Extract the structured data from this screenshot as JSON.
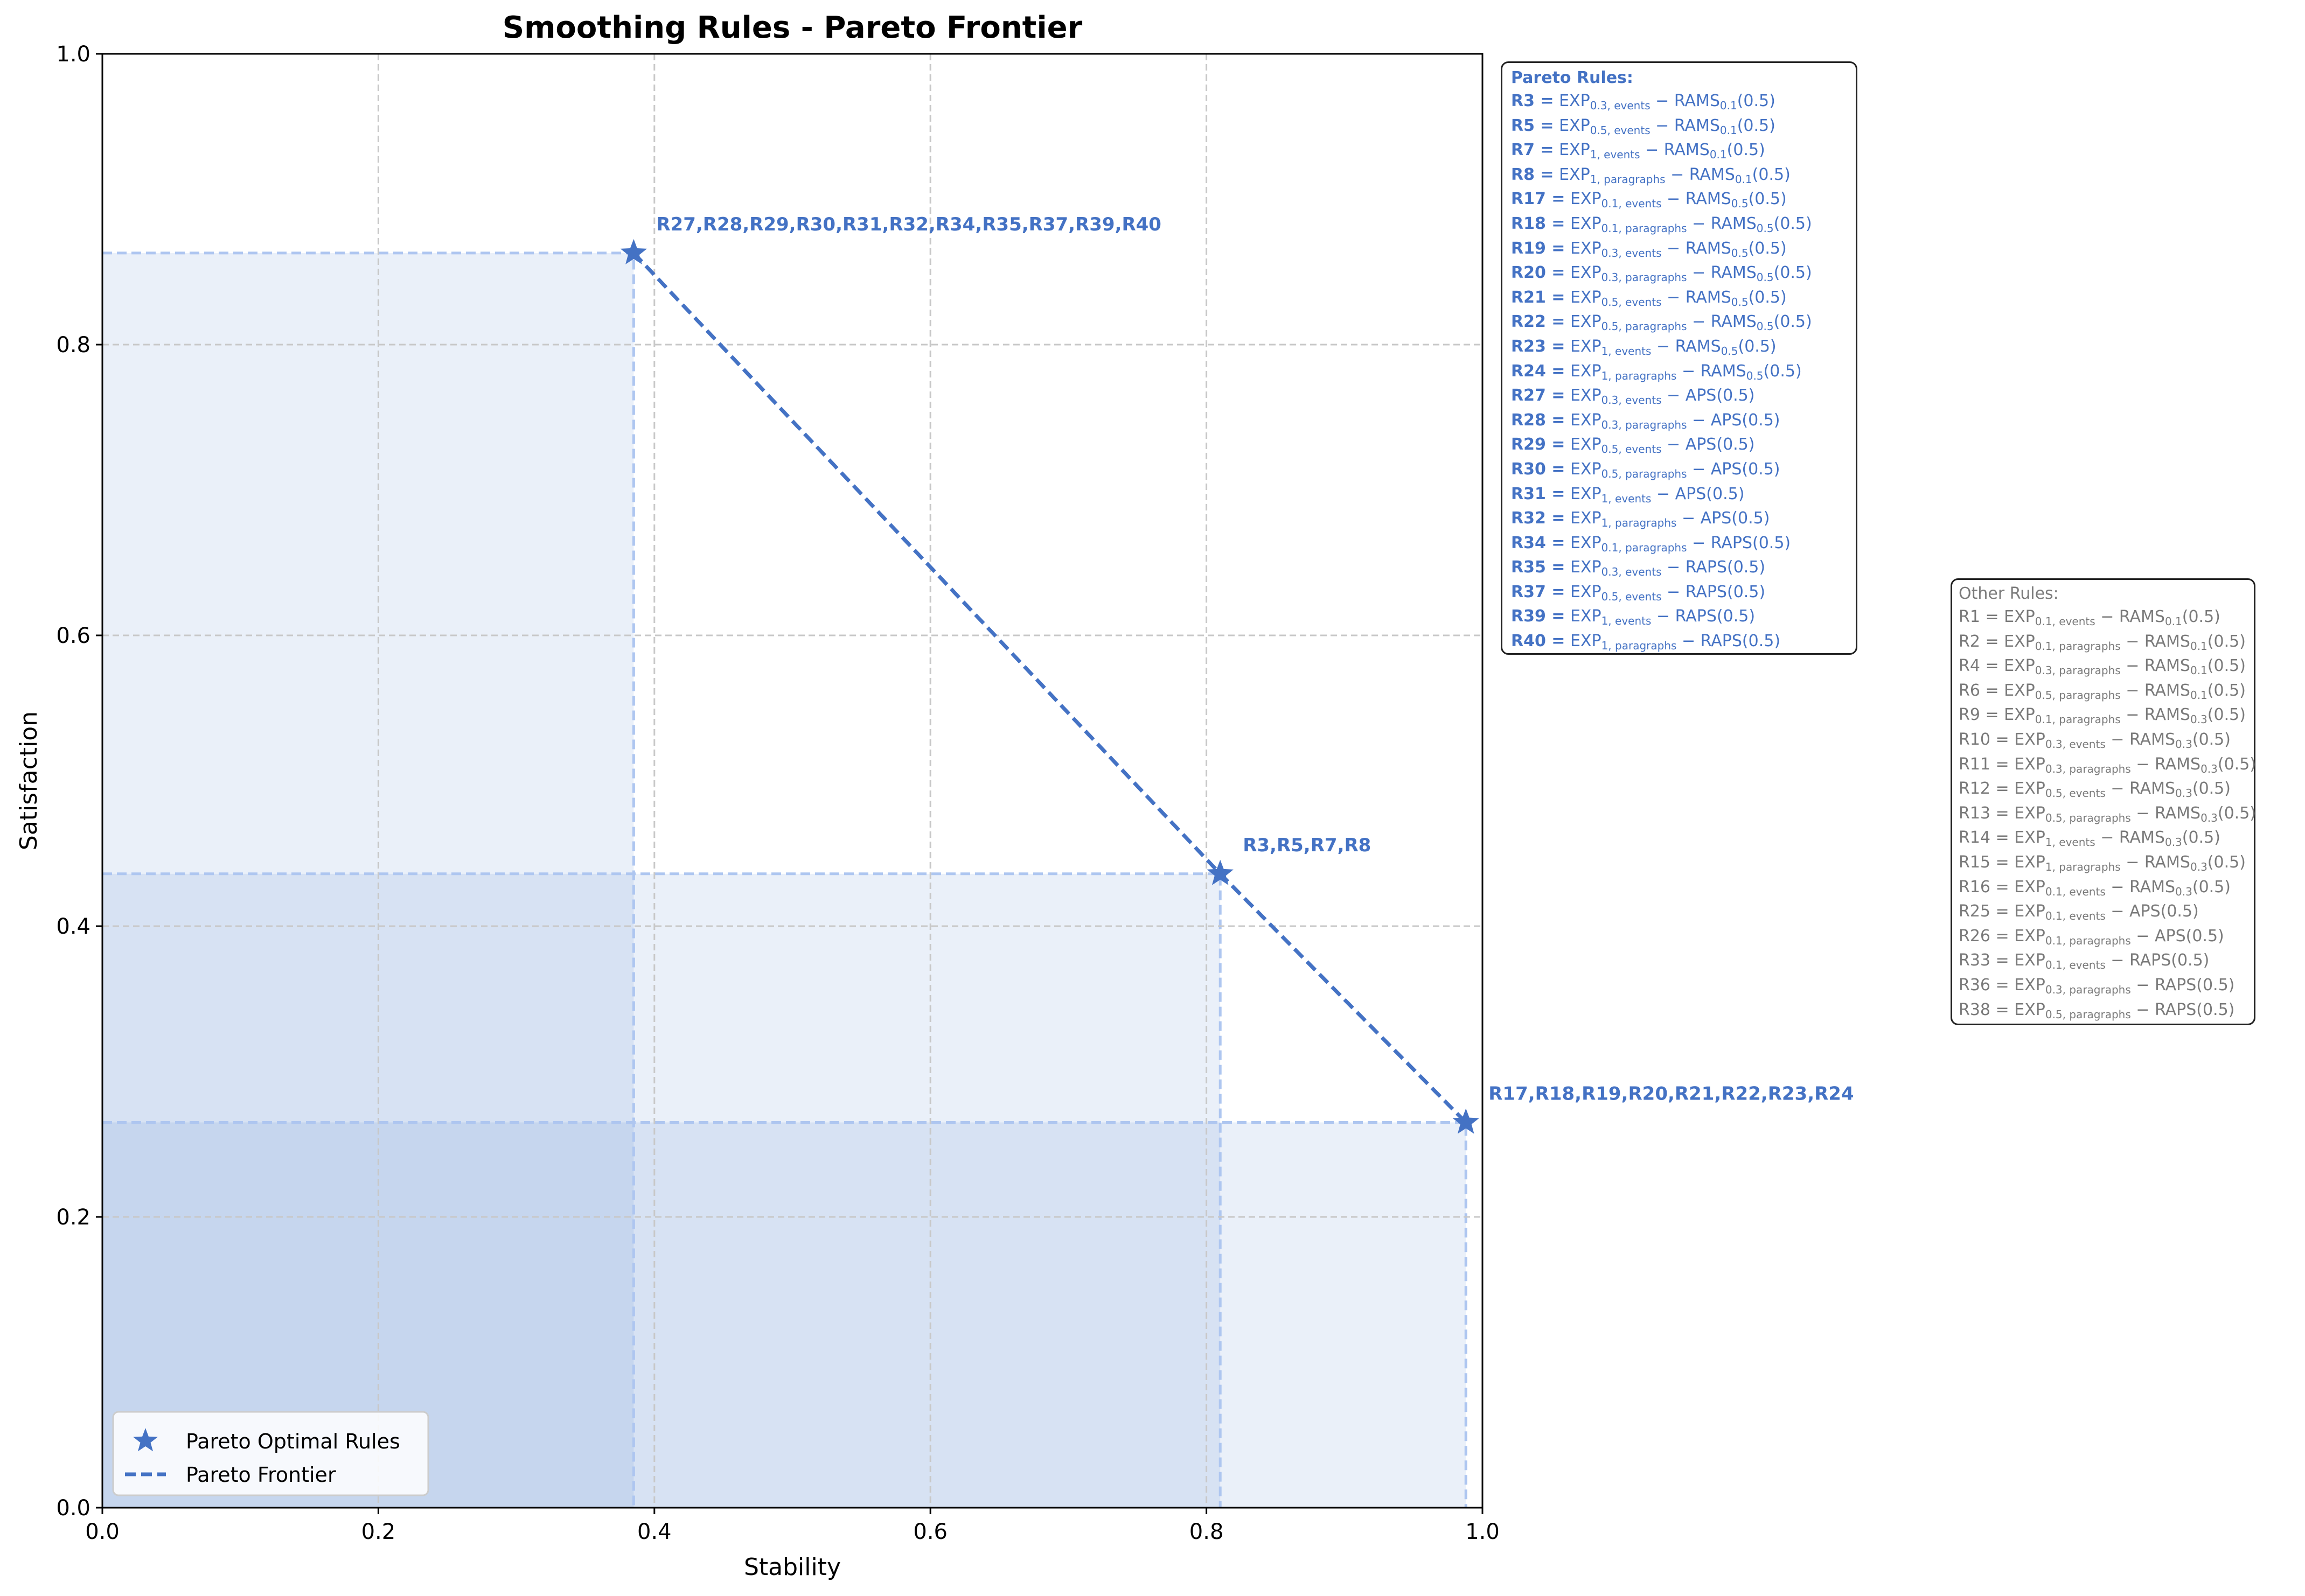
{
  "chart_data": {
    "type": "scatter",
    "title": "Smoothing Rules - Pareto Frontier",
    "xlabel": "Stability",
    "ylabel": "Satisfaction",
    "xlim": [
      0.0,
      1.0
    ],
    "ylim": [
      0.0,
      1.0
    ],
    "xticks": [
      "0.0",
      "0.2",
      "0.4",
      "0.6",
      "0.8",
      "1.0"
    ],
    "yticks": [
      "0.0",
      "0.2",
      "0.4",
      "0.6",
      "0.8",
      "1.0"
    ],
    "grid": true,
    "legend_position": "lower left",
    "colors": {
      "accent": "#4472c4",
      "region_fill": "#4472c4",
      "region_edge": "#aec6f0",
      "other_text": "#7a7a7a",
      "grid": "#c8c8c8"
    },
    "series": [
      {
        "name": "Pareto Optimal Rules",
        "marker": "star",
        "style": "markers"
      },
      {
        "name": "Pareto Frontier",
        "style": "dashed-line"
      }
    ],
    "points": [
      {
        "x": 0.385,
        "y": 0.863,
        "label": "R27,R28,R29,R30,R31,R32,R34,R35,R37,R39,R40"
      },
      {
        "x": 0.81,
        "y": 0.436,
        "label": "R3,R5,R7,R8"
      },
      {
        "x": 0.988,
        "y": 0.265,
        "label": "R17,R18,R19,R20,R21,R22,R23,R24"
      }
    ],
    "pareto_rules_title": "Pareto Rules:",
    "pareto_rules": [
      {
        "id": "R3",
        "exp": "0.3, events",
        "method": "RAMS",
        "method_sub": "0.1",
        "param": "(0.5)"
      },
      {
        "id": "R5",
        "exp": "0.5, events",
        "method": "RAMS",
        "method_sub": "0.1",
        "param": "(0.5)"
      },
      {
        "id": "R7",
        "exp": "1, events",
        "method": "RAMS",
        "method_sub": "0.1",
        "param": "(0.5)"
      },
      {
        "id": "R8",
        "exp": "1, paragraphs",
        "method": "RAMS",
        "method_sub": "0.1",
        "param": "(0.5)"
      },
      {
        "id": "R17",
        "exp": "0.1, events",
        "method": "RAMS",
        "method_sub": "0.5",
        "param": "(0.5)"
      },
      {
        "id": "R18",
        "exp": "0.1, paragraphs",
        "method": "RAMS",
        "method_sub": "0.5",
        "param": "(0.5)"
      },
      {
        "id": "R19",
        "exp": "0.3, events",
        "method": "RAMS",
        "method_sub": "0.5",
        "param": "(0.5)"
      },
      {
        "id": "R20",
        "exp": "0.3, paragraphs",
        "method": "RAMS",
        "method_sub": "0.5",
        "param": "(0.5)"
      },
      {
        "id": "R21",
        "exp": "0.5, events",
        "method": "RAMS",
        "method_sub": "0.5",
        "param": "(0.5)"
      },
      {
        "id": "R22",
        "exp": "0.5, paragraphs",
        "method": "RAMS",
        "method_sub": "0.5",
        "param": "(0.5)"
      },
      {
        "id": "R23",
        "exp": "1, events",
        "method": "RAMS",
        "method_sub": "0.5",
        "param": "(0.5)"
      },
      {
        "id": "R24",
        "exp": "1, paragraphs",
        "method": "RAMS",
        "method_sub": "0.5",
        "param": "(0.5)"
      },
      {
        "id": "R27",
        "exp": "0.3, events",
        "method": "APS",
        "method_sub": "",
        "param": "(0.5)"
      },
      {
        "id": "R28",
        "exp": "0.3, paragraphs",
        "method": "APS",
        "method_sub": "",
        "param": "(0.5)"
      },
      {
        "id": "R29",
        "exp": "0.5, events",
        "method": "APS",
        "method_sub": "",
        "param": "(0.5)"
      },
      {
        "id": "R30",
        "exp": "0.5, paragraphs",
        "method": "APS",
        "method_sub": "",
        "param": "(0.5)"
      },
      {
        "id": "R31",
        "exp": "1, events",
        "method": "APS",
        "method_sub": "",
        "param": "(0.5)"
      },
      {
        "id": "R32",
        "exp": "1, paragraphs",
        "method": "APS",
        "method_sub": "",
        "param": "(0.5)"
      },
      {
        "id": "R34",
        "exp": "0.1, paragraphs",
        "method": "RAPS",
        "method_sub": "",
        "param": "(0.5)"
      },
      {
        "id": "R35",
        "exp": "0.3, events",
        "method": "RAPS",
        "method_sub": "",
        "param": "(0.5)"
      },
      {
        "id": "R37",
        "exp": "0.5, events",
        "method": "RAPS",
        "method_sub": "",
        "param": "(0.5)"
      },
      {
        "id": "R39",
        "exp": "1, events",
        "method": "RAPS",
        "method_sub": "",
        "param": "(0.5)"
      },
      {
        "id": "R40",
        "exp": "1, paragraphs",
        "method": "RAPS",
        "method_sub": "",
        "param": "(0.5)"
      }
    ],
    "other_rules_title": "Other Rules:",
    "other_rules": [
      {
        "id": "R1",
        "exp": "0.1, events",
        "method": "RAMS",
        "method_sub": "0.1",
        "param": "(0.5)"
      },
      {
        "id": "R2",
        "exp": "0.1, paragraphs",
        "method": "RAMS",
        "method_sub": "0.1",
        "param": "(0.5)"
      },
      {
        "id": "R4",
        "exp": "0.3, paragraphs",
        "method": "RAMS",
        "method_sub": "0.1",
        "param": "(0.5)"
      },
      {
        "id": "R6",
        "exp": "0.5, paragraphs",
        "method": "RAMS",
        "method_sub": "0.1",
        "param": "(0.5)"
      },
      {
        "id": "R9",
        "exp": "0.1, paragraphs",
        "method": "RAMS",
        "method_sub": "0.3",
        "param": "(0.5)"
      },
      {
        "id": "R10",
        "exp": "0.3, events",
        "method": "RAMS",
        "method_sub": "0.3",
        "param": "(0.5)"
      },
      {
        "id": "R11",
        "exp": "0.3, paragraphs",
        "method": "RAMS",
        "method_sub": "0.3",
        "param": "(0.5)"
      },
      {
        "id": "R12",
        "exp": "0.5, events",
        "method": "RAMS",
        "method_sub": "0.3",
        "param": "(0.5)"
      },
      {
        "id": "R13",
        "exp": "0.5, paragraphs",
        "method": "RAMS",
        "method_sub": "0.3",
        "param": "(0.5)"
      },
      {
        "id": "R14",
        "exp": "1, events",
        "method": "RAMS",
        "method_sub": "0.3",
        "param": "(0.5)"
      },
      {
        "id": "R15",
        "exp": "1, paragraphs",
        "method": "RAMS",
        "method_sub": "0.3",
        "param": "(0.5)"
      },
      {
        "id": "R16",
        "exp": "0.1, events",
        "method": "RAMS",
        "method_sub": "0.3",
        "param": "(0.5)"
      },
      {
        "id": "R25",
        "exp": "0.1, events",
        "method": "APS",
        "method_sub": "",
        "param": "(0.5)"
      },
      {
        "id": "R26",
        "exp": "0.1, paragraphs",
        "method": "APS",
        "method_sub": "",
        "param": "(0.5)"
      },
      {
        "id": "R33",
        "exp": "0.1, events",
        "method": "RAPS",
        "method_sub": "",
        "param": "(0.5)"
      },
      {
        "id": "R36",
        "exp": "0.3, paragraphs",
        "method": "RAPS",
        "method_sub": "",
        "param": "(0.5)"
      },
      {
        "id": "R38",
        "exp": "0.5, paragraphs",
        "method": "RAPS",
        "method_sub": "",
        "param": "(0.5)"
      }
    ]
  }
}
